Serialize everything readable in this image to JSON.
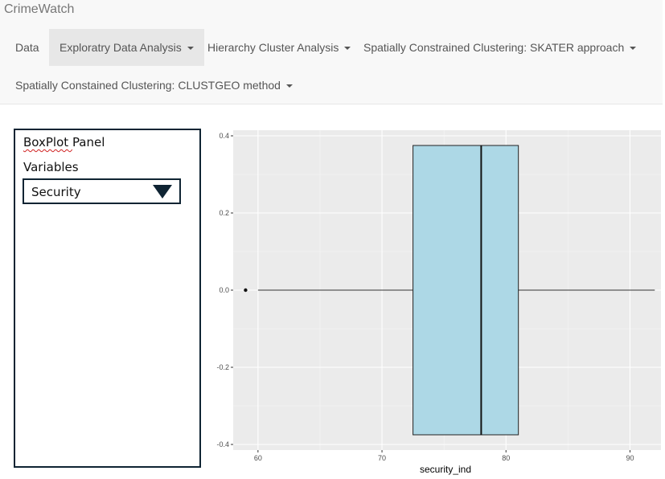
{
  "app": {
    "title": "CrimeWatch"
  },
  "nav": {
    "items": [
      {
        "label": "Data",
        "dropdown": false
      },
      {
        "label": "Exploratry Data Analysis",
        "dropdown": true,
        "active": true
      },
      {
        "label": "Hierarchy Cluster Analysis",
        "dropdown": true
      },
      {
        "label": "Spatially Constrained Clustering: SKATER approach",
        "dropdown": true
      },
      {
        "label": "Spatially Constained Clustering: CLUSTGEO method",
        "dropdown": true
      }
    ]
  },
  "sidebar": {
    "title_first": "BoxPlot",
    "title_rest": "Panel",
    "variables_label": "Variables",
    "select_value": "Security",
    "select_icon": "triangle-down-icon"
  },
  "chart_data": {
    "type": "boxplot",
    "xlabel": "security_ind",
    "ylabel": "",
    "xlim": [
      58,
      92.5
    ],
    "ylim": [
      -0.4,
      0.4
    ],
    "x_ticks": [
      60,
      70,
      80,
      90
    ],
    "y_ticks": [
      0.4,
      0.2,
      0.0,
      -0.2,
      -0.4
    ],
    "y_tick_labels": [
      "0.4",
      "0.2",
      "0.0",
      "-0.2",
      "-0.4"
    ],
    "box": {
      "whisker_low": 60,
      "q1": 72.5,
      "median": 78,
      "q3": 81,
      "whisker_high": 92,
      "outliers": [
        59
      ],
      "fill": "#add8e6",
      "y_extent": [
        -0.375,
        0.375
      ]
    },
    "panel_background": "#ebebeb",
    "grid": true
  }
}
